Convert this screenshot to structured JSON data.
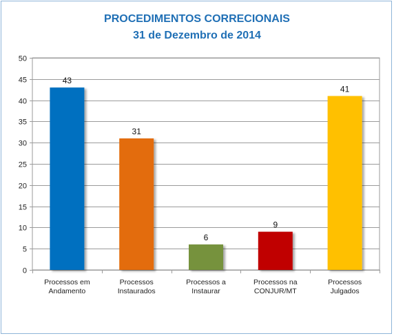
{
  "chart_data": {
    "type": "bar",
    "title_lines": [
      "PROCEDIMENTOS CORRECIONAIS",
      "31 de Dezembro de 2014"
    ],
    "categories": [
      [
        "Processos em",
        "Andamento"
      ],
      [
        "Processos",
        "Instaurados"
      ],
      [
        "Processos a",
        "Instaurar"
      ],
      [
        "Processos na",
        "CONJUR/MT"
      ],
      [
        "Processos",
        "Julgados"
      ]
    ],
    "values": [
      43,
      31,
      6,
      9,
      41
    ],
    "colors": [
      "#0070c0",
      "#e36c0a",
      "#76923c",
      "#c00000",
      "#ffc000"
    ],
    "ylim": [
      0,
      50
    ],
    "yticks": [
      0,
      5,
      10,
      15,
      20,
      25,
      30,
      35,
      40,
      45,
      50
    ],
    "grid": true,
    "legend": "none"
  }
}
